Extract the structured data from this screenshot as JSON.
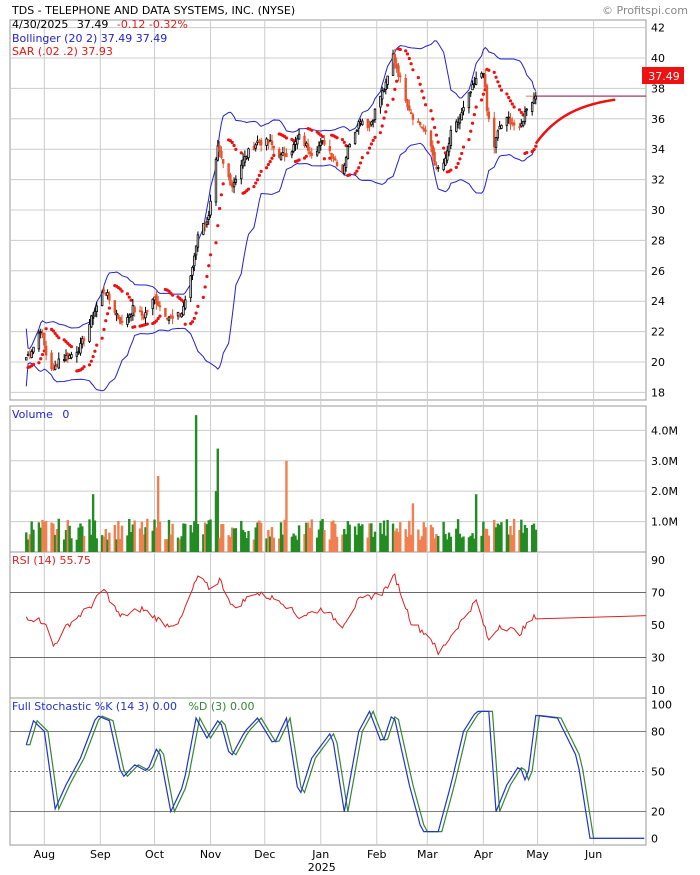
{
  "header": {
    "title": "TDS - TELEPHONE AND DATA SYSTEMS, INC. (NYSE)",
    "watermark": "© Profitspi.com",
    "quote_date": "4/30/2025",
    "quote_price": "37.49",
    "quote_change": "-0.12 -0.32%",
    "bollinger_label": "Bollinger (20 2) 37.49 37.49",
    "sar_label": "SAR (.02 .2) 37.93",
    "last_price_tag": "37.49"
  },
  "colors": {
    "up": "#000000",
    "down": "#e8502a",
    "bollinger": "#2222cc",
    "sar": "#ee1111",
    "vol_up": "#228b22",
    "vol_down": "#f08050",
    "rsi": "#dd2222",
    "stoch_k": "#2233cc",
    "stoch_d": "#338833",
    "grid": "#cccccc"
  },
  "chart_data": [
    {
      "type": "candlestick",
      "panel": "price",
      "ylim": [
        17.5,
        42.5
      ],
      "yticks": [
        18,
        20,
        22,
        24,
        26,
        28,
        30,
        32,
        34,
        36,
        38,
        40,
        42
      ],
      "x_months": [
        "Aug",
        "Sep",
        "Oct",
        "Nov",
        "Dec",
        "Jan",
        "Feb",
        "Mar",
        "Apr",
        "May",
        "Jun"
      ],
      "x_year_label": "2025",
      "close_anchors": [
        {
          "date": "2024-07-22",
          "close": 20.3
        },
        {
          "date": "2024-07-26",
          "close": 21.0
        },
        {
          "date": "2024-07-30",
          "close": 22.2
        },
        {
          "date": "2024-08-02",
          "close": 20.5
        },
        {
          "date": "2024-08-06",
          "close": 19.4
        },
        {
          "date": "2024-08-09",
          "close": 20.2
        },
        {
          "date": "2024-08-15",
          "close": 20.4
        },
        {
          "date": "2024-08-21",
          "close": 21.0
        },
        {
          "date": "2024-08-27",
          "close": 22.8
        },
        {
          "date": "2024-09-03",
          "close": 24.8
        },
        {
          "date": "2024-09-09",
          "close": 23.4
        },
        {
          "date": "2024-09-13",
          "close": 22.5
        },
        {
          "date": "2024-09-19",
          "close": 23.5
        },
        {
          "date": "2024-09-25",
          "close": 23.0
        },
        {
          "date": "2024-10-01",
          "close": 24.2
        },
        {
          "date": "2024-10-07",
          "close": 23.2
        },
        {
          "date": "2024-10-11",
          "close": 22.8
        },
        {
          "date": "2024-10-16",
          "close": 23.2
        },
        {
          "date": "2024-10-21",
          "close": 25.5
        },
        {
          "date": "2024-10-25",
          "close": 28.5
        },
        {
          "date": "2024-10-31",
          "close": 29.5
        },
        {
          "date": "2024-11-05",
          "close": 34.0
        },
        {
          "date": "2024-11-08",
          "close": 33.0
        },
        {
          "date": "2024-11-13",
          "close": 31.6
        },
        {
          "date": "2024-11-18",
          "close": 33.0
        },
        {
          "date": "2024-11-22",
          "close": 33.8
        },
        {
          "date": "2024-11-27",
          "close": 34.5
        },
        {
          "date": "2024-12-04",
          "close": 34.4
        },
        {
          "date": "2024-12-10",
          "close": 33.5
        },
        {
          "date": "2024-12-16",
          "close": 34.0
        },
        {
          "date": "2024-12-20",
          "close": 34.8
        },
        {
          "date": "2024-12-27",
          "close": 33.8
        },
        {
          "date": "2025-01-03",
          "close": 34.5
        },
        {
          "date": "2025-01-08",
          "close": 33.5
        },
        {
          "date": "2025-01-13",
          "close": 32.6
        },
        {
          "date": "2025-01-17",
          "close": 34.5
        },
        {
          "date": "2025-01-23",
          "close": 36.0
        },
        {
          "date": "2025-01-28",
          "close": 35.5
        },
        {
          "date": "2025-02-03",
          "close": 37.5
        },
        {
          "date": "2025-02-06",
          "close": 38.2
        },
        {
          "date": "2025-02-10",
          "close": 40.2
        },
        {
          "date": "2025-02-13",
          "close": 39.0
        },
        {
          "date": "2025-02-18",
          "close": 37.0
        },
        {
          "date": "2025-02-21",
          "close": 36.2
        },
        {
          "date": "2025-02-26",
          "close": 35.5
        },
        {
          "date": "2025-03-03",
          "close": 34.2
        },
        {
          "date": "2025-03-06",
          "close": 32.6
        },
        {
          "date": "2025-03-11",
          "close": 33.2
        },
        {
          "date": "2025-03-14",
          "close": 35.0
        },
        {
          "date": "2025-03-19",
          "close": 36.0
        },
        {
          "date": "2025-03-24",
          "close": 37.5
        },
        {
          "date": "2025-03-28",
          "close": 38.5
        },
        {
          "date": "2025-04-01",
          "close": 39.2
        },
        {
          "date": "2025-04-03",
          "close": 36.5
        },
        {
          "date": "2025-04-07",
          "close": 34.2
        },
        {
          "date": "2025-04-10",
          "close": 35.5
        },
        {
          "date": "2025-04-15",
          "close": 36.0
        },
        {
          "date": "2025-04-21",
          "close": 35.2
        },
        {
          "date": "2025-04-25",
          "close": 36.8
        },
        {
          "date": "2025-04-30",
          "close": 37.49
        }
      ]
    },
    {
      "type": "bar",
      "panel": "volume",
      "title": "Volume",
      "title_value": "0",
      "ylim": [
        0,
        4.8
      ],
      "yticks": [
        "1.0M",
        "2.0M",
        "3.0M",
        "4.0M"
      ],
      "spikes_millions": [
        {
          "date": "2024-10-24",
          "value": 4.5
        },
        {
          "date": "2024-11-05",
          "value": 3.4
        },
        {
          "date": "2024-10-03",
          "value": 2.5
        },
        {
          "date": "2024-11-04",
          "value": 2.0
        },
        {
          "date": "2024-12-13",
          "value": 3.0
        },
        {
          "date": "2024-08-28",
          "value": 1.9
        },
        {
          "date": "2025-02-21",
          "value": 1.6
        },
        {
          "date": "2025-03-28",
          "value": 1.9
        }
      ]
    },
    {
      "type": "line",
      "panel": "rsi",
      "title": "RSI (14) 55.75",
      "ylim": [
        5,
        95
      ],
      "yticks": [
        10,
        30,
        50,
        70,
        90
      ],
      "ref_lines": [
        30,
        70
      ],
      "anchors": [
        {
          "date": "2024-07-22",
          "value": 55
        },
        {
          "date": "2024-08-01",
          "value": 52
        },
        {
          "date": "2024-08-06",
          "value": 37
        },
        {
          "date": "2024-08-14",
          "value": 50
        },
        {
          "date": "2024-08-27",
          "value": 62
        },
        {
          "date": "2024-09-03",
          "value": 72
        },
        {
          "date": "2024-09-12",
          "value": 55
        },
        {
          "date": "2024-09-24",
          "value": 60
        },
        {
          "date": "2024-10-08",
          "value": 50
        },
        {
          "date": "2024-10-15",
          "value": 52
        },
        {
          "date": "2024-10-25",
          "value": 80
        },
        {
          "date": "2024-11-01",
          "value": 72
        },
        {
          "date": "2024-11-06",
          "value": 78
        },
        {
          "date": "2024-11-14",
          "value": 60
        },
        {
          "date": "2024-11-25",
          "value": 70
        },
        {
          "date": "2024-12-10",
          "value": 65
        },
        {
          "date": "2024-12-20",
          "value": 55
        },
        {
          "date": "2025-01-02",
          "value": 60
        },
        {
          "date": "2025-01-13",
          "value": 50
        },
        {
          "date": "2025-01-22",
          "value": 65
        },
        {
          "date": "2025-02-04",
          "value": 70
        },
        {
          "date": "2025-02-11",
          "value": 80
        },
        {
          "date": "2025-02-20",
          "value": 52
        },
        {
          "date": "2025-03-03",
          "value": 42
        },
        {
          "date": "2025-03-07",
          "value": 32
        },
        {
          "date": "2025-03-17",
          "value": 48
        },
        {
          "date": "2025-03-28",
          "value": 65
        },
        {
          "date": "2025-04-04",
          "value": 40
        },
        {
          "date": "2025-04-10",
          "value": 50
        },
        {
          "date": "2025-04-21",
          "value": 45
        },
        {
          "date": "2025-04-30",
          "value": 55.75
        },
        {
          "date": "2025-06-30",
          "value": 55.75
        }
      ]
    },
    {
      "type": "line",
      "panel": "stochastic",
      "title": "Full Stochastic %K (14 3) 0.00",
      "title_d": "%D (3) 0.00",
      "ylim": [
        -5,
        105
      ],
      "yticks": [
        0,
        20,
        50,
        80,
        100
      ],
      "ref_lines": [
        20,
        50,
        80
      ],
      "series": [
        {
          "name": "%K",
          "anchors": [
            {
              "date": "2024-07-22",
              "value": 70
            },
            {
              "date": "2024-07-26",
              "value": 88
            },
            {
              "date": "2024-08-01",
              "value": 80
            },
            {
              "date": "2024-08-07",
              "value": 22
            },
            {
              "date": "2024-08-13",
              "value": 40
            },
            {
              "date": "2024-08-21",
              "value": 60
            },
            {
              "date": "2024-08-30",
              "value": 92
            },
            {
              "date": "2024-09-06",
              "value": 88
            },
            {
              "date": "2024-09-13",
              "value": 45
            },
            {
              "date": "2024-09-20",
              "value": 55
            },
            {
              "date": "2024-09-27",
              "value": 50
            },
            {
              "date": "2024-10-03",
              "value": 70
            },
            {
              "date": "2024-10-10",
              "value": 20
            },
            {
              "date": "2024-10-17",
              "value": 40
            },
            {
              "date": "2024-10-24",
              "value": 90
            },
            {
              "date": "2024-10-30",
              "value": 75
            },
            {
              "date": "2024-11-06",
              "value": 90
            },
            {
              "date": "2024-11-12",
              "value": 60
            },
            {
              "date": "2024-11-20",
              "value": 80
            },
            {
              "date": "2024-11-27",
              "value": 90
            },
            {
              "date": "2024-12-06",
              "value": 70
            },
            {
              "date": "2024-12-13",
              "value": 90
            },
            {
              "date": "2024-12-20",
              "value": 30
            },
            {
              "date": "2024-12-27",
              "value": 60
            },
            {
              "date": "2025-01-07",
              "value": 80
            },
            {
              "date": "2025-01-14",
              "value": 20
            },
            {
              "date": "2025-01-22",
              "value": 80
            },
            {
              "date": "2025-01-28",
              "value": 95
            },
            {
              "date": "2025-02-04",
              "value": 70
            },
            {
              "date": "2025-02-10",
              "value": 95
            },
            {
              "date": "2025-02-19",
              "value": 40
            },
            {
              "date": "2025-02-26",
              "value": 5
            },
            {
              "date": "2025-03-07",
              "value": 5
            },
            {
              "date": "2025-03-14",
              "value": 40
            },
            {
              "date": "2025-03-21",
              "value": 80
            },
            {
              "date": "2025-03-28",
              "value": 95
            },
            {
              "date": "2025-04-04",
              "value": 95
            },
            {
              "date": "2025-04-08",
              "value": 20
            },
            {
              "date": "2025-04-14",
              "value": 40
            },
            {
              "date": "2025-04-21",
              "value": 55
            },
            {
              "date": "2025-04-25",
              "value": 40
            },
            {
              "date": "2025-04-30",
              "value": 92
            },
            {
              "date": "2025-05-12",
              "value": 90
            },
            {
              "date": "2025-05-23",
              "value": 60
            },
            {
              "date": "2025-05-30",
              "value": 0
            },
            {
              "date": "2025-06-30",
              "value": 0
            }
          ]
        },
        {
          "name": "%D",
          "lag_days": 2
        }
      ]
    }
  ]
}
